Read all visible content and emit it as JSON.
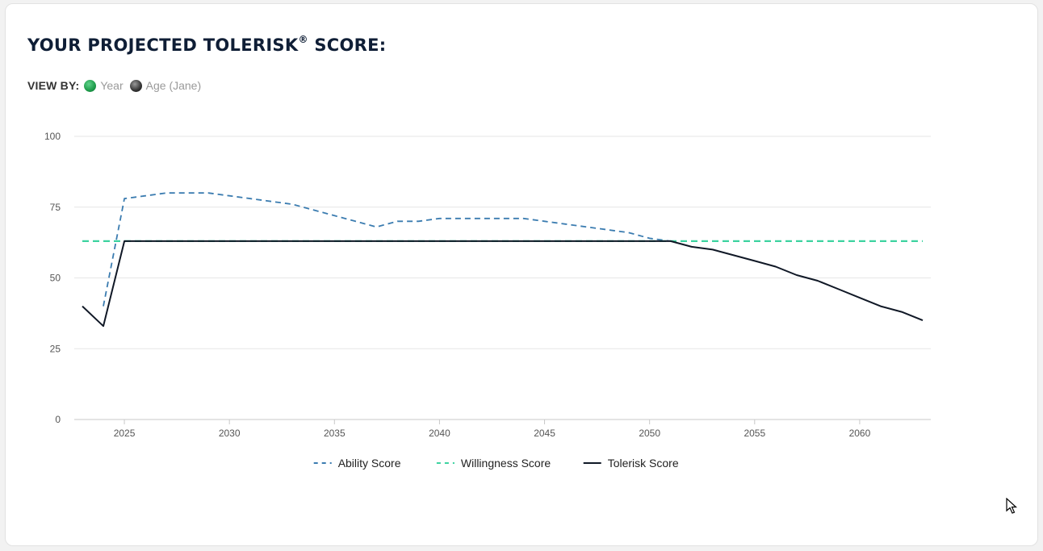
{
  "header": {
    "title": "YOUR PROJECTED TOLERISK",
    "title_mark": "®",
    "title_suffix": " SCORE:"
  },
  "view_by": {
    "label": "VIEW BY:",
    "options": [
      {
        "label": "Year",
        "selected": true
      },
      {
        "label": "Age (Jane)",
        "selected": false
      }
    ]
  },
  "chart_data": {
    "type": "line",
    "xlim": [
      2023,
      2063
    ],
    "ylim": [
      0,
      100
    ],
    "x_ticks": [
      2025,
      2030,
      2035,
      2040,
      2045,
      2050,
      2055,
      2060
    ],
    "y_ticks": [
      0,
      25,
      50,
      75,
      100
    ],
    "grid": "horizontal",
    "legend_position": "bottom",
    "series": [
      {
        "name": "Ability Score",
        "color": "#3b7cb0",
        "style": "dashed",
        "points": [
          [
            2024,
            40
          ],
          [
            2025,
            78
          ],
          [
            2026,
            79
          ],
          [
            2027,
            80
          ],
          [
            2028,
            80
          ],
          [
            2029,
            80
          ],
          [
            2030,
            79
          ],
          [
            2031,
            78
          ],
          [
            2032,
            77
          ],
          [
            2033,
            76
          ],
          [
            2034,
            74
          ],
          [
            2035,
            72
          ],
          [
            2036,
            70
          ],
          [
            2037,
            68
          ],
          [
            2038,
            70
          ],
          [
            2039,
            70
          ],
          [
            2040,
            71
          ],
          [
            2041,
            71
          ],
          [
            2042,
            71
          ],
          [
            2043,
            71
          ],
          [
            2044,
            71
          ],
          [
            2045,
            70
          ],
          [
            2046,
            69
          ],
          [
            2047,
            68
          ],
          [
            2048,
            67
          ],
          [
            2049,
            66
          ],
          [
            2050,
            64
          ],
          [
            2051,
            63
          ]
        ]
      },
      {
        "name": "Willingness Score",
        "color": "#3dd3a0",
        "style": "dashed",
        "points": [
          [
            2023,
            63
          ],
          [
            2063,
            63
          ]
        ]
      },
      {
        "name": "Tolerisk Score",
        "color": "#101826",
        "style": "solid",
        "points": [
          [
            2023,
            40
          ],
          [
            2024,
            33
          ],
          [
            2025,
            63
          ],
          [
            2026,
            63
          ],
          [
            2030,
            63
          ],
          [
            2035,
            63
          ],
          [
            2040,
            63
          ],
          [
            2045,
            63
          ],
          [
            2050,
            63
          ],
          [
            2051,
            63
          ],
          [
            2052,
            61
          ],
          [
            2053,
            60
          ],
          [
            2054,
            58
          ],
          [
            2055,
            56
          ],
          [
            2056,
            54
          ],
          [
            2057,
            51
          ],
          [
            2058,
            49
          ],
          [
            2059,
            46
          ],
          [
            2060,
            43
          ],
          [
            2061,
            40
          ],
          [
            2062,
            38
          ],
          [
            2063,
            35
          ]
        ]
      }
    ]
  }
}
